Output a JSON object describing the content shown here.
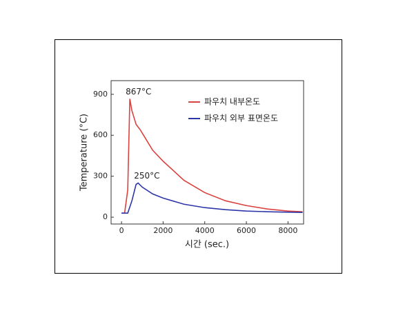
{
  "chart_data": {
    "type": "line",
    "xlabel": "시간 (sec.)",
    "ylabel": "Temperature (°C)",
    "annotations": [
      "867°C",
      "250°C"
    ],
    "series": [
      {
        "name": "파우치 내부온도",
        "color": "#d9413f",
        "x": [
          0,
          150,
          300,
          400,
          500,
          700,
          900,
          1100,
          1500,
          2000,
          3000,
          4000,
          5000,
          6000,
          7000,
          8000,
          8700
        ],
        "values": [
          30,
          30,
          200,
          867,
          780,
          680,
          640,
          590,
          490,
          410,
          270,
          180,
          120,
          85,
          60,
          45,
          40
        ]
      },
      {
        "name": "파우치 외부 표면온도",
        "color": "#2b35a8",
        "x": [
          0,
          300,
          500,
          700,
          800,
          1000,
          1500,
          2000,
          3000,
          4000,
          5000,
          6000,
          7000,
          8000,
          8700
        ],
        "values": [
          30,
          30,
          120,
          240,
          250,
          220,
          170,
          140,
          95,
          70,
          55,
          45,
          40,
          37,
          35
        ]
      }
    ],
    "xlim": [
      -500,
      8750
    ],
    "xticks": [
      0,
      2000,
      4000,
      6000,
      8000
    ],
    "ylim": [
      -50,
      1000
    ],
    "yticks": [
      0,
      300,
      600,
      900
    ],
    "legend": "upper-right"
  }
}
